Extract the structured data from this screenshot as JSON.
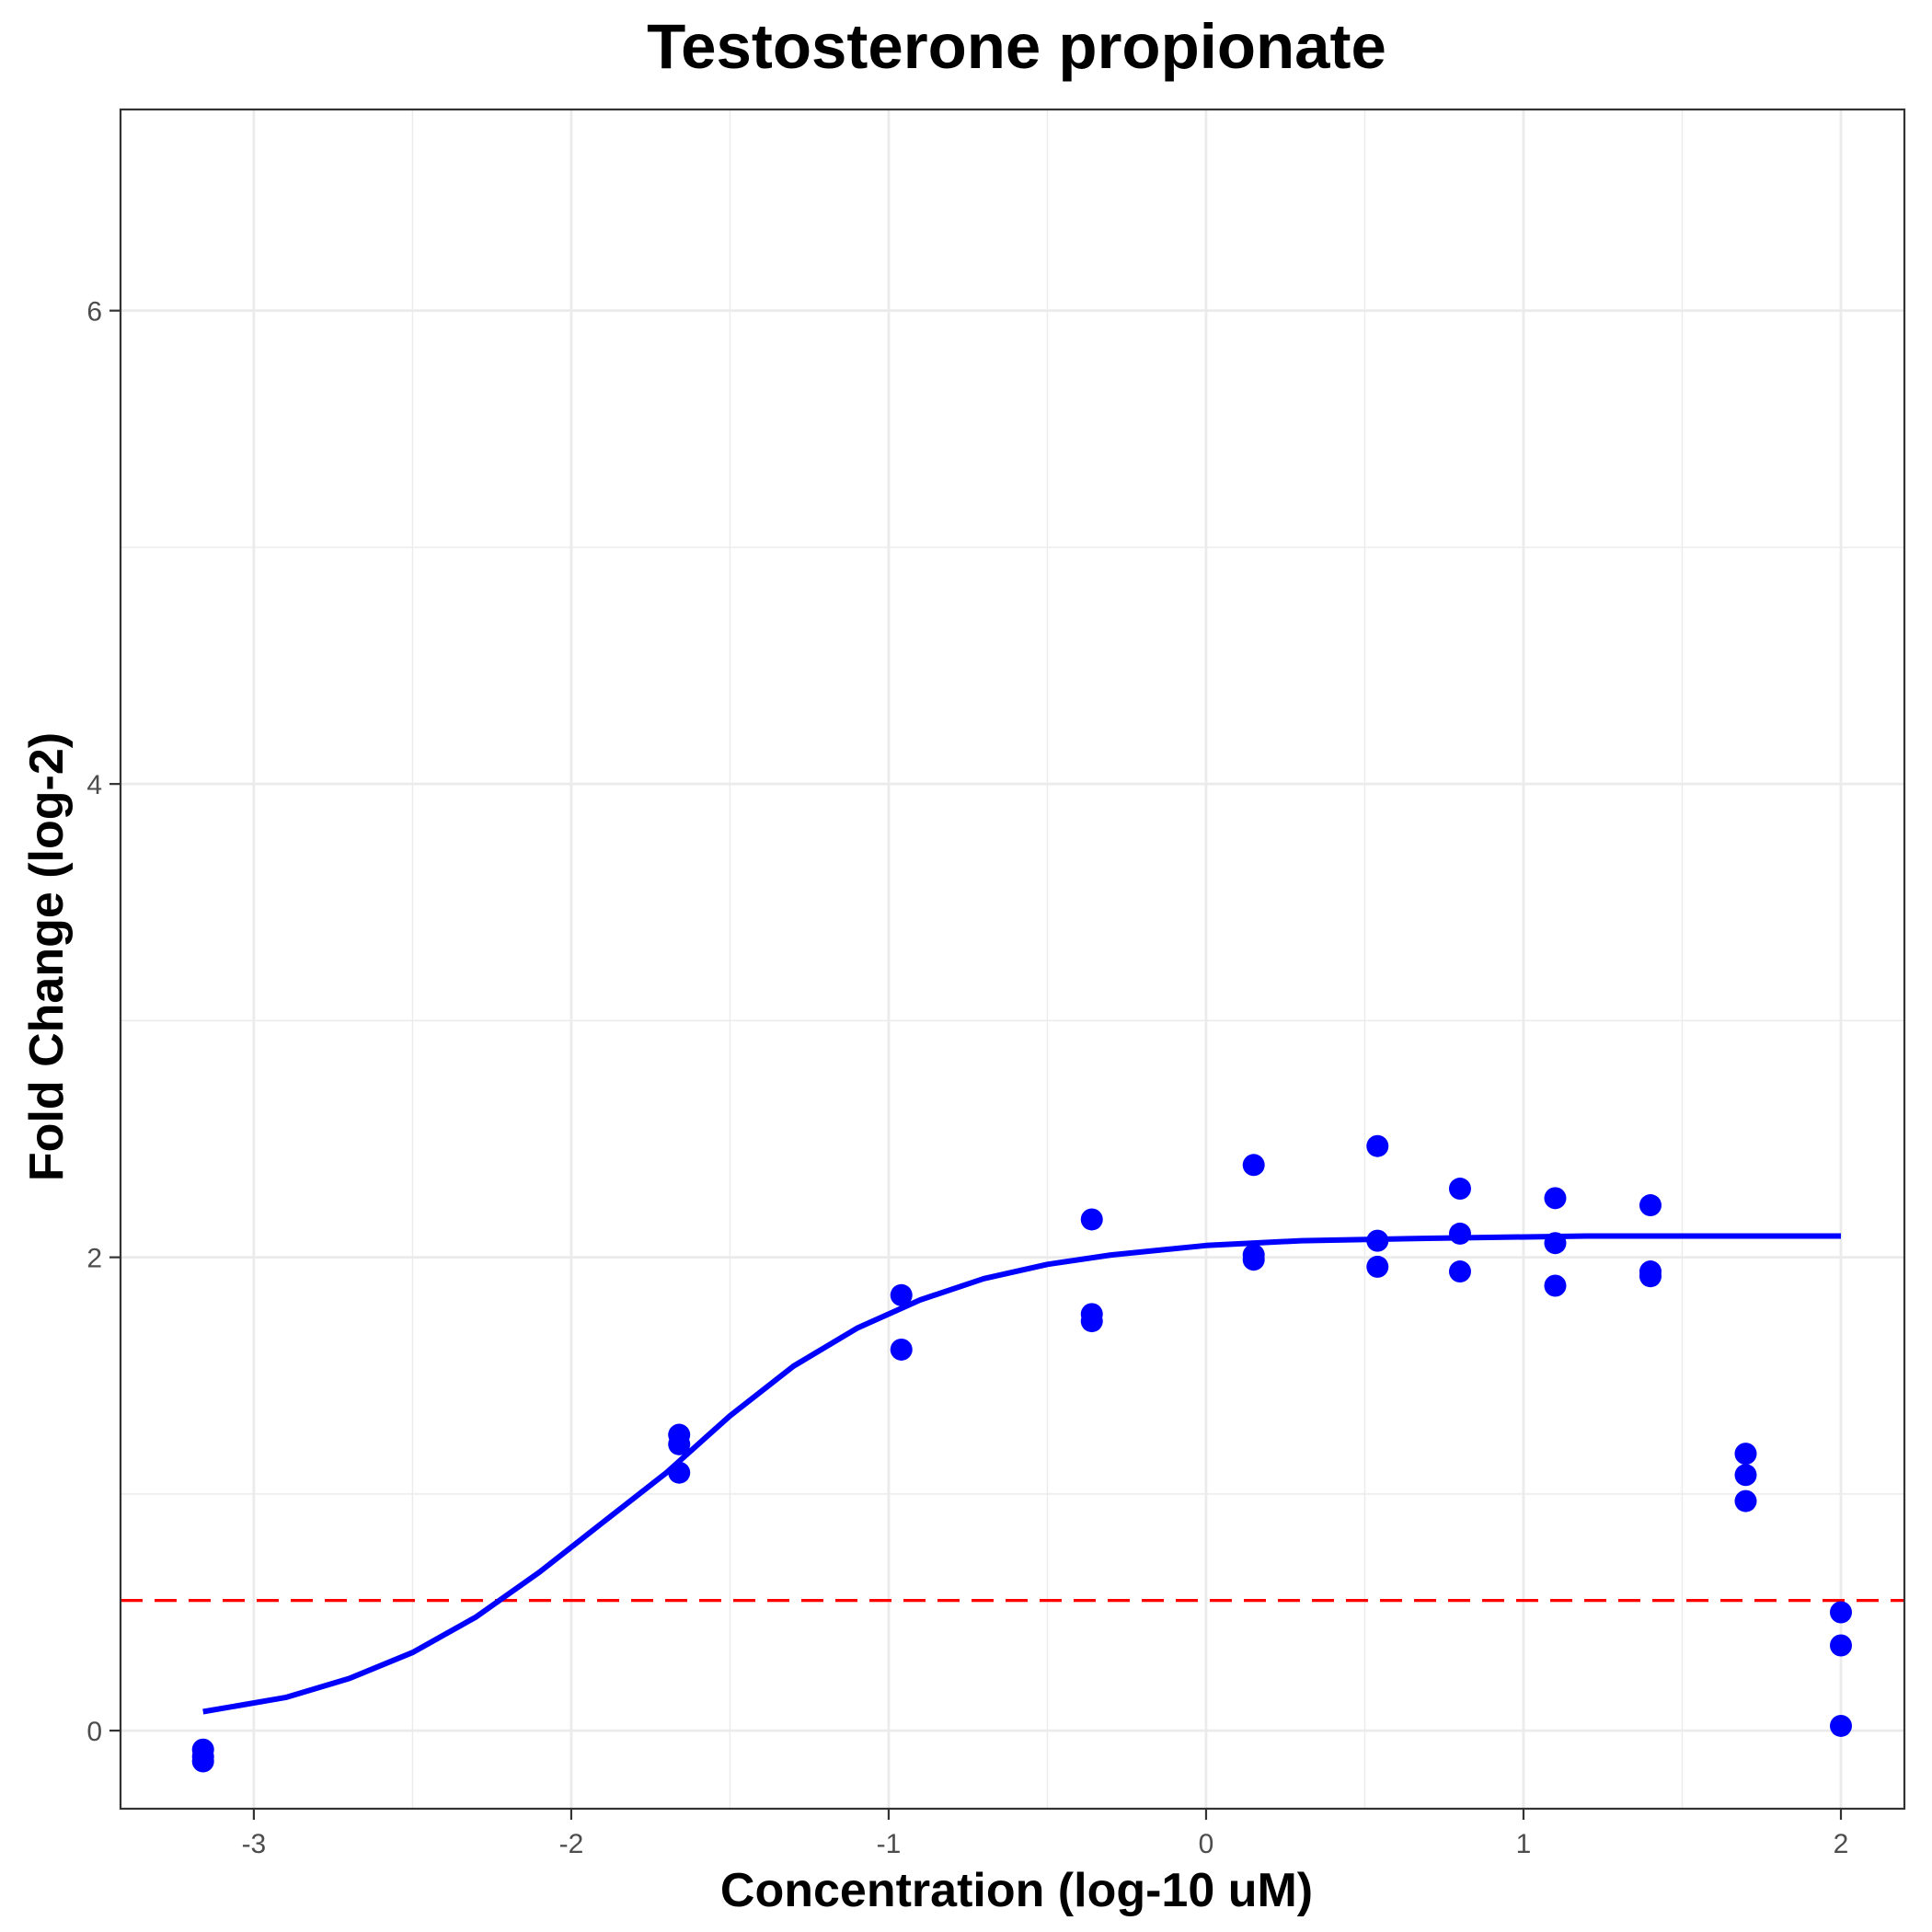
{
  "chart_data": {
    "type": "scatter",
    "title": "Testosterone propionate",
    "xlabel": "Concentration (log-10 uM)",
    "ylabel": "Fold Change (log-2)",
    "xlim": [
      -3.42,
      2.2
    ],
    "ylim": [
      -0.33,
      6.85
    ],
    "xticks": [
      -3,
      -2,
      -1,
      0,
      1,
      2
    ],
    "yticks": [
      0,
      2,
      4,
      6
    ],
    "grid": true,
    "colors": {
      "points": "#0000ff",
      "fit": "#0000ff",
      "threshold": "#ff0000"
    },
    "threshold": {
      "y": 0.55,
      "style": "dashed"
    },
    "series": [
      {
        "type": "scatter",
        "points": [
          {
            "x": -3.16,
            "y": -0.08
          },
          {
            "x": -3.16,
            "y": -0.11
          },
          {
            "x": -3.16,
            "y": -0.13
          },
          {
            "x": -1.66,
            "y": 1.25
          },
          {
            "x": -1.66,
            "y": 1.21
          },
          {
            "x": -1.66,
            "y": 1.09
          },
          {
            "x": -0.96,
            "y": 1.84
          },
          {
            "x": -0.96,
            "y": 1.61
          },
          {
            "x": -0.36,
            "y": 2.16
          },
          {
            "x": -0.36,
            "y": 1.76
          },
          {
            "x": -0.36,
            "y": 1.73
          },
          {
            "x": 0.15,
            "y": 2.39
          },
          {
            "x": 0.15,
            "y": 2.01
          },
          {
            "x": 0.15,
            "y": 1.99
          },
          {
            "x": 0.54,
            "y": 2.47
          },
          {
            "x": 0.54,
            "y": 2.07
          },
          {
            "x": 0.54,
            "y": 1.96
          },
          {
            "x": 0.8,
            "y": 2.29
          },
          {
            "x": 0.8,
            "y": 2.1
          },
          {
            "x": 0.8,
            "y": 1.94
          },
          {
            "x": 1.1,
            "y": 2.25
          },
          {
            "x": 1.1,
            "y": 2.06
          },
          {
            "x": 1.1,
            "y": 1.88
          },
          {
            "x": 1.4,
            "y": 2.22
          },
          {
            "x": 1.4,
            "y": 1.94
          },
          {
            "x": 1.4,
            "y": 1.92
          },
          {
            "x": 1.7,
            "y": 1.17
          },
          {
            "x": 1.7,
            "y": 1.08
          },
          {
            "x": 1.7,
            "y": 0.97
          },
          {
            "x": 2.0,
            "y": 0.5
          },
          {
            "x": 2.0,
            "y": 0.36
          },
          {
            "x": 2.0,
            "y": 0.02
          }
        ]
      },
      {
        "type": "line",
        "points": [
          {
            "x": -3.16,
            "y": 0.08
          },
          {
            "x": -2.9,
            "y": 0.14
          },
          {
            "x": -2.7,
            "y": 0.22
          },
          {
            "x": -2.5,
            "y": 0.33
          },
          {
            "x": -2.3,
            "y": 0.48
          },
          {
            "x": -2.1,
            "y": 0.67
          },
          {
            "x": -1.9,
            "y": 0.88
          },
          {
            "x": -1.7,
            "y": 1.09
          },
          {
            "x": -1.5,
            "y": 1.33
          },
          {
            "x": -1.3,
            "y": 1.54
          },
          {
            "x": -1.1,
            "y": 1.7
          },
          {
            "x": -0.9,
            "y": 1.82
          },
          {
            "x": -0.7,
            "y": 1.91
          },
          {
            "x": -0.5,
            "y": 1.97
          },
          {
            "x": -0.3,
            "y": 2.01
          },
          {
            "x": 0.0,
            "y": 2.05
          },
          {
            "x": 0.3,
            "y": 2.07
          },
          {
            "x": 0.7,
            "y": 2.08
          },
          {
            "x": 1.2,
            "y": 2.09
          },
          {
            "x": 1.6,
            "y": 2.09
          },
          {
            "x": 2.0,
            "y": 2.09
          }
        ]
      }
    ]
  }
}
